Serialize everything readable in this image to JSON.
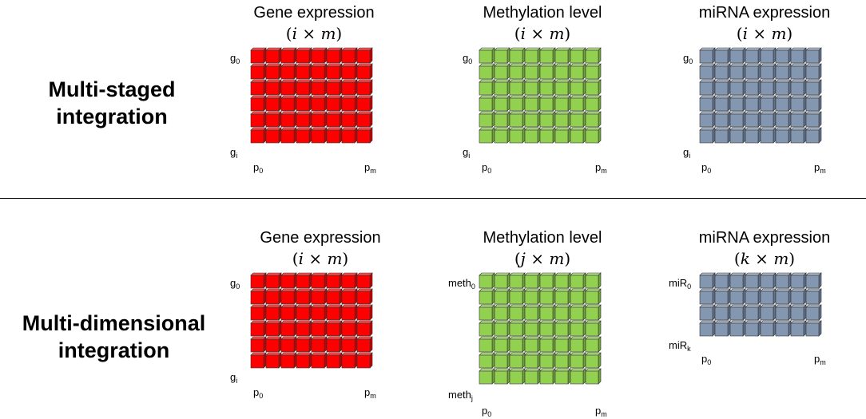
{
  "colors": {
    "gene": {
      "front": "#ff0000",
      "top": "#ff5050",
      "side": "#c40000"
    },
    "methylation": {
      "front": "#92d050",
      "top": "#b6e28a",
      "side": "#6fa63a"
    },
    "mirna": {
      "front": "#8497b0",
      "top": "#aebbcd",
      "side": "#5f738f"
    }
  },
  "sections": [
    {
      "title_line1": "Multi-staged",
      "title_line2": "integration",
      "panels": [
        {
          "title": "Gene expression",
          "dim_open": "(",
          "dim_a": "i",
          "dim_x": " × ",
          "dim_b": "m",
          "dim_close": ")",
          "row_top_label": "g",
          "row_top_sub": "0",
          "row_bottom_label": "g",
          "row_bottom_sub": "i",
          "col_left_label": "p",
          "col_left_sub": "0",
          "col_right_label": "p",
          "col_right_sub": "m",
          "rows": 6,
          "cols": 8,
          "color": "gene"
        },
        {
          "title": "Methylation level",
          "dim_open": "(",
          "dim_a": "i",
          "dim_x": " × ",
          "dim_b": "m",
          "dim_close": ")",
          "row_top_label": "g",
          "row_top_sub": "0",
          "row_bottom_label": "g",
          "row_bottom_sub": "i",
          "col_left_label": "p",
          "col_left_sub": "0",
          "col_right_label": "p",
          "col_right_sub": "m",
          "rows": 6,
          "cols": 8,
          "color": "methylation"
        },
        {
          "title": "miRNA expression",
          "dim_open": "(",
          "dim_a": "i",
          "dim_x": " × ",
          "dim_b": "m",
          "dim_close": ")",
          "row_top_label": "g",
          "row_top_sub": "0",
          "row_bottom_label": "g",
          "row_bottom_sub": "i",
          "col_left_label": "p",
          "col_left_sub": "0",
          "col_right_label": "p",
          "col_right_sub": "m",
          "rows": 6,
          "cols": 8,
          "color": "mirna"
        }
      ]
    },
    {
      "title_line1": "Multi-dimensional",
      "title_line2": "integration",
      "panels": [
        {
          "title": "Gene expression",
          "dim_open": "(",
          "dim_a": "i",
          "dim_x": " × ",
          "dim_b": "m",
          "dim_close": ")",
          "row_top_label": "g",
          "row_top_sub": "0",
          "row_bottom_label": "g",
          "row_bottom_sub": "i",
          "col_left_label": "p",
          "col_left_sub": "0",
          "col_right_label": "p",
          "col_right_sub": "m",
          "rows": 6,
          "cols": 8,
          "color": "gene"
        },
        {
          "title": "Methylation level",
          "dim_open": "(",
          "dim_a": "j",
          "dim_x": " × ",
          "dim_b": "m",
          "dim_close": ")",
          "row_top_label": "meth",
          "row_top_sub": "0",
          "row_bottom_label": "meth",
          "row_bottom_sub": "j",
          "col_left_label": "p",
          "col_left_sub": "0",
          "col_right_label": "p",
          "col_right_sub": "m",
          "rows": 7,
          "cols": 8,
          "color": "methylation"
        },
        {
          "title": "miRNA expression",
          "dim_open": "(",
          "dim_a": "k",
          "dim_x": " × ",
          "dim_b": "m",
          "dim_close": ")",
          "row_top_label": "miR",
          "row_top_sub": "0",
          "row_bottom_label": "miR",
          "row_bottom_sub": "k",
          "col_left_label": "p",
          "col_left_sub": "0",
          "col_right_label": "p",
          "col_right_sub": "m",
          "rows": 4,
          "cols": 8,
          "color": "mirna"
        }
      ]
    }
  ]
}
